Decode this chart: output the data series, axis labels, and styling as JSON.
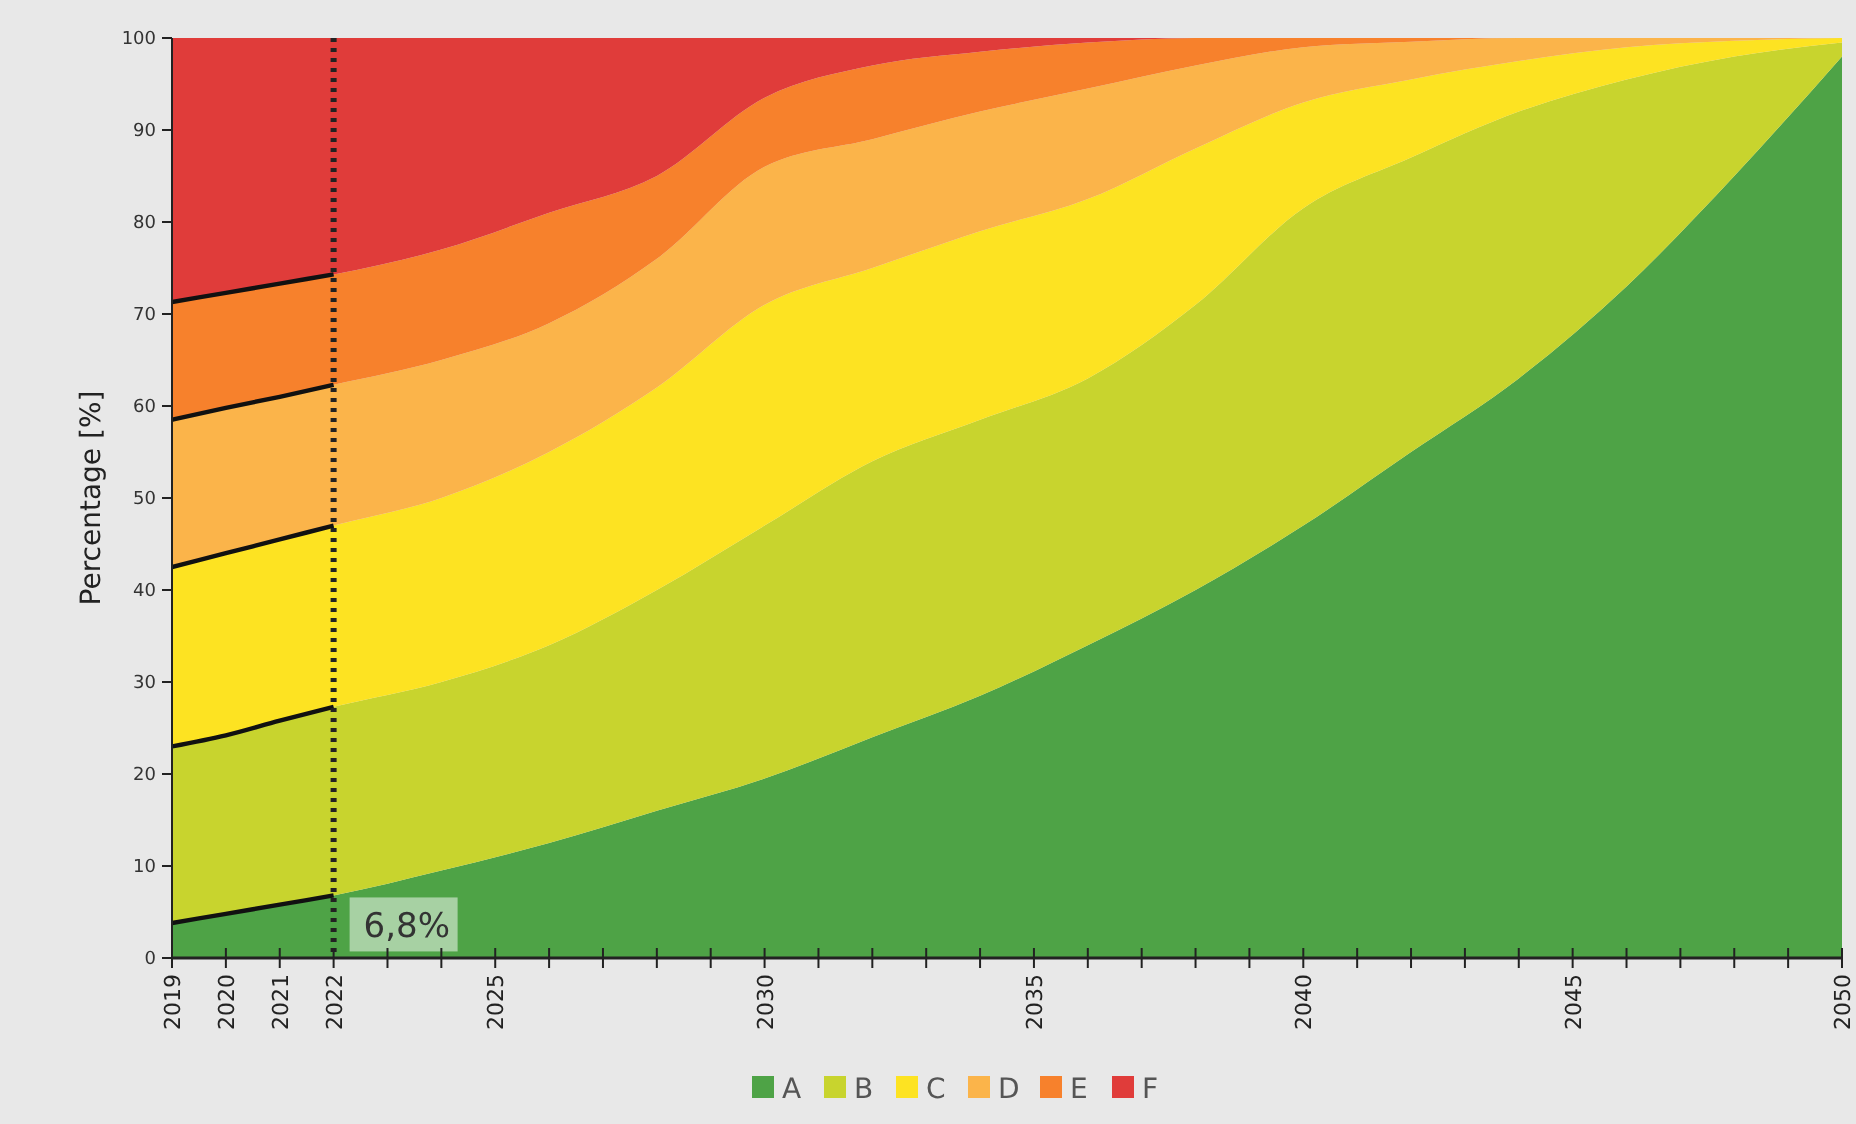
{
  "chart_data": {
    "type": "area",
    "stacked": true,
    "ylabel": "Percentage [%]",
    "x": [
      2019,
      2020,
      2021,
      2022,
      2024,
      2026,
      2028,
      2030,
      2032,
      2034,
      2036,
      2038,
      2040,
      2042,
      2044,
      2046,
      2048,
      2050
    ],
    "series": [
      {
        "name": "A",
        "color": "#4ea346",
        "values": [
          3.8,
          4.8,
          5.8,
          6.8,
          9.5,
          12.5,
          16,
          19.5,
          24,
          28.5,
          34,
          40,
          47,
          55,
          63,
          73,
          85,
          98
        ]
      },
      {
        "name": "B",
        "color": "#c8d42e",
        "values": [
          19.2,
          19.4,
          20,
          20.5,
          20.5,
          21.5,
          24,
          27.5,
          30,
          30,
          29,
          31,
          34.5,
          32,
          29,
          22.5,
          13,
          1.5
        ]
      },
      {
        "name": "C",
        "color": "#fde322",
        "values": [
          19.5,
          19.8,
          19.7,
          19.7,
          20,
          21,
          22,
          24,
          21,
          20.5,
          19.5,
          17,
          11.5,
          8.5,
          5.5,
          3.5,
          1.7,
          0.5
        ]
      },
      {
        "name": "D",
        "color": "#fbb44a",
        "values": [
          16,
          15.8,
          15.5,
          15.3,
          15,
          14,
          14,
          15,
          14,
          13,
          12,
          9,
          6,
          4.1,
          2.5,
          1,
          0.3,
          0
        ]
      },
      {
        "name": "E",
        "color": "#f7812c",
        "values": [
          12.8,
          12.5,
          12.3,
          12,
          12,
          12,
          9,
          7.5,
          8,
          6.5,
          5,
          3,
          1,
          0.4,
          0,
          0,
          0,
          0
        ]
      },
      {
        "name": "F",
        "color": "#e03c3a",
        "values": [
          28.7,
          27.7,
          26.7,
          25.7,
          23,
          19,
          15,
          6.5,
          3,
          1.5,
          0.5,
          0,
          0,
          0,
          0,
          0,
          0,
          0
        ]
      }
    ],
    "xlim": [
      2019,
      2050
    ],
    "xticks": [
      2019,
      2020,
      2021,
      2022,
      {
        "value": 2023,
        "label": null
      },
      {
        "value": 2024,
        "label": null
      },
      2025,
      {
        "value": 2026,
        "label": null
      },
      {
        "value": 2027,
        "label": null
      },
      {
        "value": 2028,
        "label": null
      },
      {
        "value": 2029,
        "label": null
      },
      2030,
      {
        "value": 2031,
        "label": null
      },
      {
        "value": 2032,
        "label": null
      },
      {
        "value": 2033,
        "label": null
      },
      {
        "value": 2034,
        "label": null
      },
      2035,
      {
        "value": 2036,
        "label": null
      },
      {
        "value": 2037,
        "label": null
      },
      {
        "value": 2038,
        "label": null
      },
      {
        "value": 2039,
        "label": null
      },
      2040,
      {
        "value": 2041,
        "label": null
      },
      {
        "value": 2042,
        "label": null
      },
      {
        "value": 2043,
        "label": null
      },
      {
        "value": 2044,
        "label": null
      },
      2045,
      {
        "value": 2046,
        "label": null
      },
      {
        "value": 2047,
        "label": null
      },
      {
        "value": 2048,
        "label": null
      },
      {
        "value": 2049,
        "label": null
      },
      2050
    ],
    "ylim": [
      0,
      100
    ],
    "yticks": [
      0,
      10,
      20,
      30,
      40,
      50,
      60,
      70,
      80,
      90,
      100
    ],
    "ref_lines": [
      {
        "axis": "x",
        "value": 2022,
        "label": null,
        "color": "#222222",
        "line_style": "dotted"
      }
    ],
    "annotations": [
      {
        "text": "6,8%",
        "x": 2022,
        "y": 6.8
      }
    ],
    "legend": "bottom",
    "grid": false
  }
}
